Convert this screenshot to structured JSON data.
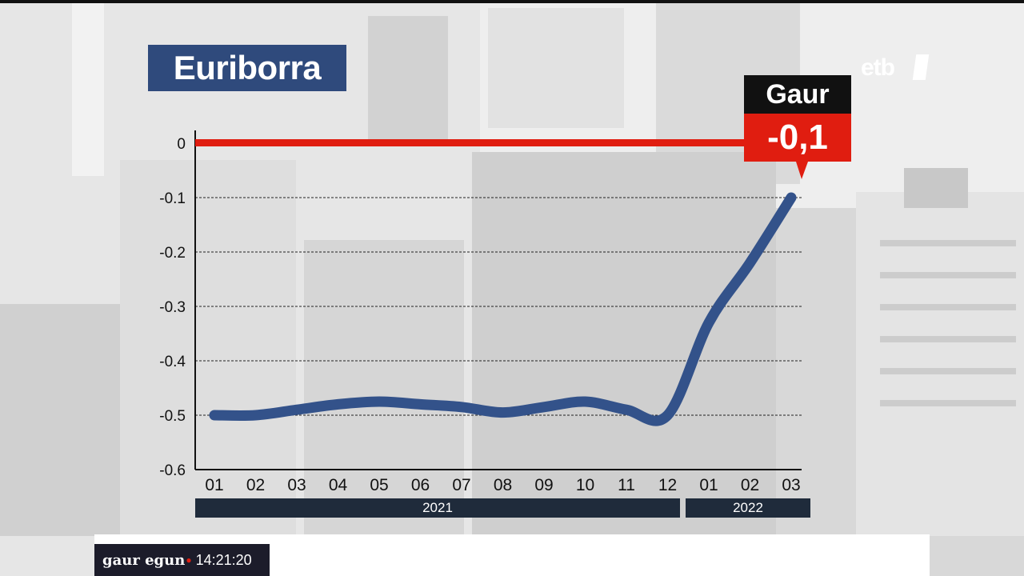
{
  "broadcast": {
    "logo": "etb",
    "show_name": "gaur egun",
    "clock": "14:21:20"
  },
  "callout": {
    "label": "Gaur",
    "value": "-0,1"
  },
  "colors": {
    "title_bg": "#2f4a7c",
    "series_line": "#33528a",
    "zero_line": "#e01d10",
    "callout_label_bg": "#111111",
    "callout_value_bg": "#e01d10",
    "year_bar": "#1f2b3b"
  },
  "chart_data": {
    "type": "line",
    "title": "Euriborra",
    "xlabel": "",
    "ylabel": "",
    "x": [
      "01",
      "02",
      "03",
      "04",
      "05",
      "06",
      "07",
      "08",
      "09",
      "10",
      "11",
      "12",
      "01",
      "02",
      "03"
    ],
    "year_groups": [
      {
        "label": "2021",
        "months": 12
      },
      {
        "label": "2022",
        "months": 3
      }
    ],
    "series": [
      {
        "values": [
          -0.5,
          -0.5,
          -0.49,
          -0.48,
          -0.475,
          -0.48,
          -0.485,
          -0.495,
          -0.485,
          -0.475,
          -0.49,
          -0.5,
          -0.33,
          -0.22,
          -0.1
        ]
      }
    ],
    "ylim": [
      -0.6,
      0
    ],
    "yticks": [
      "0",
      "-0.1",
      "-0.2",
      "-0.3",
      "-0.4",
      "-0.5",
      "-0.6"
    ],
    "reference_line": 0,
    "grid": true
  }
}
